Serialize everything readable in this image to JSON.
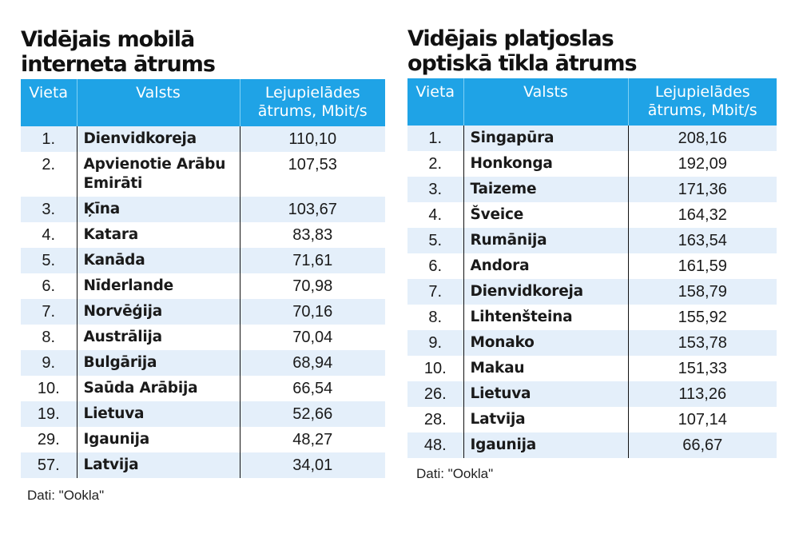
{
  "mobile": {
    "title_line1": "Vidējais mobilā",
    "title_line2": "interneta ātrums",
    "headers": [
      "Vieta",
      "Valsts",
      "Lejupielādes ātrums, Mbit/s"
    ],
    "rows": [
      {
        "rank": "1.",
        "country": "Dienvidkoreja",
        "speed": "110,10"
      },
      {
        "rank": "2.",
        "country": "Apvienotie Arābu Emirāti",
        "speed": "107,53"
      },
      {
        "rank": "3.",
        "country": "Ķīna",
        "speed": "103,67"
      },
      {
        "rank": "4.",
        "country": "Katara",
        "speed": "83,83"
      },
      {
        "rank": "5.",
        "country": "Kanāda",
        "speed": "71,61"
      },
      {
        "rank": "6.",
        "country": "Nīderlande",
        "speed": "70,98"
      },
      {
        "rank": "7.",
        "country": "Norvēģija",
        "speed": "70,16"
      },
      {
        "rank": "8.",
        "country": "Austrālija",
        "speed": "70,04"
      },
      {
        "rank": "9.",
        "country": "Bulgārija",
        "speed": "68,94"
      },
      {
        "rank": "10.",
        "country": "Saūda Arābija",
        "speed": "66,54"
      },
      {
        "rank": "19.",
        "country": "Lietuva",
        "speed": "52,66"
      },
      {
        "rank": "29.",
        "country": "Igaunija",
        "speed": "48,27"
      },
      {
        "rank": "57.",
        "country": "Latvija",
        "speed": "34,01"
      }
    ],
    "source": "Dati: \"Ookla\""
  },
  "fiber": {
    "title_line1": "Vidējais platjoslas",
    "title_line2": "optiskā tīkla ātrums",
    "headers": [
      "Vieta",
      "Valsts",
      "Lejupielādes ātrums, Mbit/s"
    ],
    "rows": [
      {
        "rank": "1.",
        "country": "Singapūra",
        "speed": "208,16"
      },
      {
        "rank": "2.",
        "country": "Honkonga",
        "speed": "192,09"
      },
      {
        "rank": "3.",
        "country": "Taizeme",
        "speed": "171,36"
      },
      {
        "rank": "4.",
        "country": "Šveice",
        "speed": "164,32"
      },
      {
        "rank": "5.",
        "country": "Rumānija",
        "speed": "163,54"
      },
      {
        "rank": "6.",
        "country": "Andora",
        "speed": "161,59"
      },
      {
        "rank": "7.",
        "country": "Dienvidkoreja",
        "speed": "158,79"
      },
      {
        "rank": "8.",
        "country": "Lihtenšteina",
        "speed": "155,92"
      },
      {
        "rank": "9.",
        "country": "Monako",
        "speed": "153,78"
      },
      {
        "rank": "10.",
        "country": "Makau",
        "speed": "151,33"
      },
      {
        "rank": "26.",
        "country": "Lietuva",
        "speed": "113,26"
      },
      {
        "rank": "28.",
        "country": "Latvija",
        "speed": "107,14"
      },
      {
        "rank": "48.",
        "country": "Igaunija",
        "speed": "66,67"
      }
    ],
    "source": "Dati: \"Ookla\""
  },
  "colors": {
    "header_bg": "#1fa3e6",
    "stripe_bg": "#e4effa"
  }
}
